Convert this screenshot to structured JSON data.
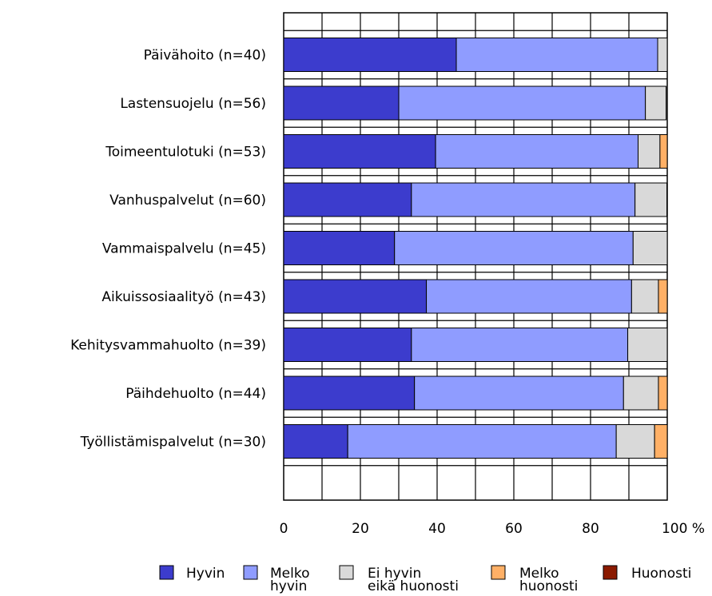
{
  "chart_data": {
    "type": "bar",
    "orientation": "horizontal",
    "stacked": true,
    "categories": [
      "Päivähoito (n=40)",
      "Lastensuojelu (n=56)",
      "Toimeentulotuki (n=53)",
      "Vanhuspalvelut (n=60)",
      "Vammaispalvelu (n=45)",
      "Aikuissosiaalityö (n=43)",
      "Kehitysvammahuolto (n=39)",
      "Päihdehuolto (n=44)",
      "Työllistämispalvelut (n=30)"
    ],
    "series": [
      {
        "name": "Hyvin",
        "color": "#3c3ccd",
        "values": [
          45,
          30,
          39.6,
          33.3,
          28.9,
          37.2,
          33.3,
          34.1,
          16.7
        ]
      },
      {
        "name": "Melko hyvin",
        "color": "#8f9cff",
        "values": [
          52.5,
          64.3,
          52.8,
          58.3,
          62.2,
          53.5,
          56.4,
          54.5,
          70
        ]
      },
      {
        "name": "Ei hyvin eikä huonosti",
        "color": "#d9d9d9",
        "values": [
          2.5,
          5.4,
          5.7,
          8.3,
          8.9,
          7,
          10.3,
          9.1,
          10
        ]
      },
      {
        "name": "Melko huonosti",
        "color": "#ffb066",
        "values": [
          0,
          0,
          1.9,
          0,
          0,
          2.3,
          0,
          2.3,
          3.3
        ]
      },
      {
        "name": "Huonosti",
        "color": "#8b1a00",
        "values": [
          0,
          0,
          0,
          0,
          0,
          0,
          0,
          0,
          0
        ]
      }
    ],
    "x_ticks": [
      "0",
      "20",
      "40",
      "60",
      "80",
      "100 %"
    ],
    "xlim": [
      0,
      100
    ],
    "grid": true,
    "legend_position": "bottom",
    "legend_labels": [
      [
        "Hyvin"
      ],
      [
        "Melko",
        "hyvin"
      ],
      [
        "Ei hyvin",
        "eikä huonosti"
      ],
      [
        "Melko",
        "huonosti"
      ],
      [
        "Huonosti"
      ]
    ]
  }
}
